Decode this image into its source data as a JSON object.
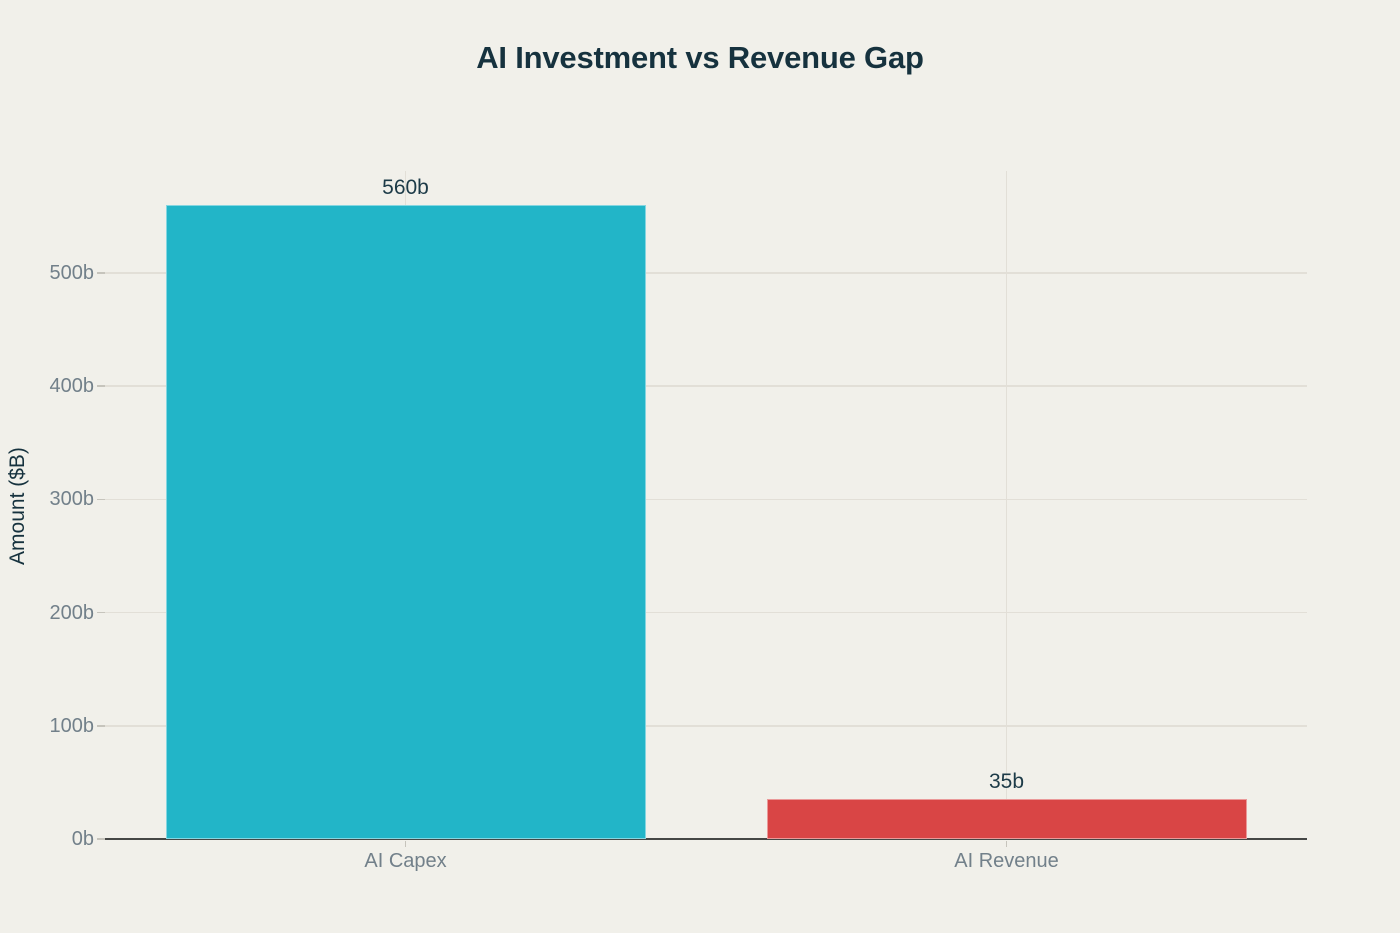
{
  "chart_data": {
    "type": "bar",
    "title": "AI Investment vs Revenue Gap",
    "xlabel": "",
    "ylabel": "Amount ($B)",
    "categories": [
      "AI Capex",
      "AI Revenue"
    ],
    "values": [
      560,
      35
    ],
    "value_labels": [
      "560b",
      "35b"
    ],
    "bar_colors": [
      "#22b5c8",
      "#d94545"
    ],
    "yticks": [
      {
        "value": 0,
        "label": "0b"
      },
      {
        "value": 100,
        "label": "100b"
      },
      {
        "value": 200,
        "label": "200b"
      },
      {
        "value": 300,
        "label": "300b"
      },
      {
        "value": 400,
        "label": "400b"
      },
      {
        "value": 500,
        "label": "500b"
      }
    ],
    "ylim": [
      0,
      590
    ],
    "grid": true,
    "legend": false
  },
  "colors": {
    "background": "#f1f0ea",
    "title_text": "#16323e",
    "tick_text": "#72808a",
    "value_text": "#1d3b48",
    "grid_line": "#e2dfd7",
    "axis_line": "#454745"
  }
}
